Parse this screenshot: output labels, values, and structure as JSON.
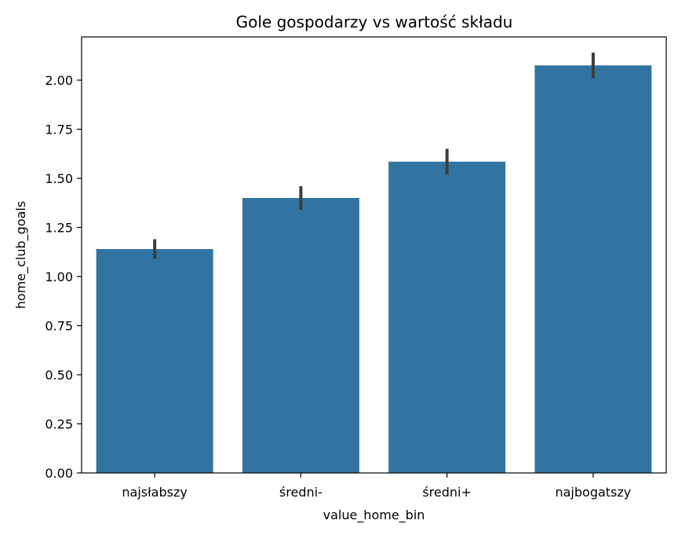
{
  "chart_data": {
    "type": "bar",
    "title": "Gole gospodarzy vs wartość składu",
    "xlabel": "value_home_bin",
    "ylabel": "home_club_goals",
    "categories": [
      "najsłabszy",
      "średni-",
      "średni+",
      "najbogatszy"
    ],
    "values": [
      1.14,
      1.4,
      1.585,
      2.075
    ],
    "error_bars": [
      [
        1.09,
        1.19
      ],
      [
        1.34,
        1.46
      ],
      [
        1.52,
        1.65
      ],
      [
        2.01,
        2.14
      ]
    ],
    "ylim": [
      0,
      2.22
    ],
    "yticks": [
      0.0,
      0.25,
      0.5,
      0.75,
      1.0,
      1.25,
      1.5,
      1.75,
      2.0
    ],
    "ytick_labels": [
      "0.00",
      "0.25",
      "0.50",
      "0.75",
      "1.00",
      "1.25",
      "1.50",
      "1.75",
      "2.00"
    ],
    "grid": false,
    "colors": {
      "bar": "#3274a1",
      "error_bar": "#3d3d3d",
      "axis": "#000000"
    }
  }
}
